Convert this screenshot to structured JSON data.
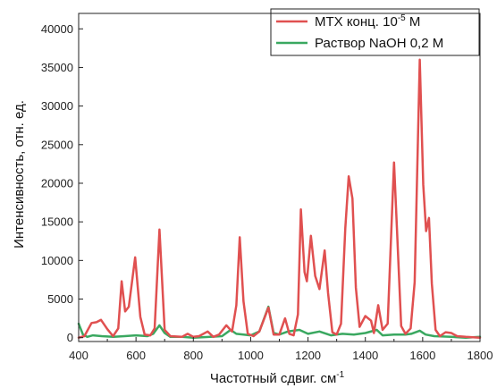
{
  "chart_data": {
    "type": "line",
    "xlabel": "Частотный сдвиг. см",
    "xlabel_sup": "-1",
    "ylabel": "Интенсивность, отн. ед.",
    "xlim": [
      400,
      1800
    ],
    "ylim": [
      -500,
      42000
    ],
    "xticks": [
      400,
      600,
      800,
      1000,
      1200,
      1400,
      1600,
      1800
    ],
    "yticks": [
      0,
      5000,
      10000,
      15000,
      20000,
      25000,
      30000,
      35000,
      40000
    ],
    "grid": false,
    "legend_position": "top-right",
    "series": [
      {
        "name": "MTX конц. 10",
        "name_sup": "-5",
        "name_suffix": " M",
        "color": "#e05050",
        "points": [
          [
            400,
            0
          ],
          [
            420,
            200
          ],
          [
            445,
            1900
          ],
          [
            462,
            2000
          ],
          [
            478,
            2300
          ],
          [
            500,
            1100
          ],
          [
            520,
            200
          ],
          [
            538,
            1200
          ],
          [
            550,
            7300
          ],
          [
            562,
            3400
          ],
          [
            575,
            4000
          ],
          [
            597,
            10400
          ],
          [
            615,
            2700
          ],
          [
            630,
            400
          ],
          [
            650,
            300
          ],
          [
            665,
            1200
          ],
          [
            682,
            14000
          ],
          [
            700,
            1000
          ],
          [
            720,
            200
          ],
          [
            760,
            100
          ],
          [
            780,
            500
          ],
          [
            800,
            100
          ],
          [
            820,
            200
          ],
          [
            850,
            800
          ],
          [
            870,
            100
          ],
          [
            890,
            400
          ],
          [
            915,
            1600
          ],
          [
            935,
            800
          ],
          [
            950,
            4200
          ],
          [
            962,
            13000
          ],
          [
            975,
            4700
          ],
          [
            990,
            500
          ],
          [
            1010,
            200
          ],
          [
            1030,
            800
          ],
          [
            1062,
            3900
          ],
          [
            1080,
            400
          ],
          [
            1100,
            400
          ],
          [
            1120,
            2500
          ],
          [
            1135,
            500
          ],
          [
            1150,
            300
          ],
          [
            1165,
            3000
          ],
          [
            1175,
            16600
          ],
          [
            1188,
            8500
          ],
          [
            1196,
            7300
          ],
          [
            1210,
            13200
          ],
          [
            1225,
            8000
          ],
          [
            1240,
            6300
          ],
          [
            1258,
            11300
          ],
          [
            1270,
            5800
          ],
          [
            1285,
            700
          ],
          [
            1300,
            400
          ],
          [
            1315,
            1800
          ],
          [
            1330,
            14200
          ],
          [
            1342,
            20900
          ],
          [
            1355,
            18000
          ],
          [
            1367,
            6500
          ],
          [
            1380,
            1400
          ],
          [
            1400,
            2800
          ],
          [
            1420,
            2200
          ],
          [
            1430,
            600
          ],
          [
            1445,
            4200
          ],
          [
            1460,
            1000
          ],
          [
            1478,
            1800
          ],
          [
            1493,
            16000
          ],
          [
            1500,
            22700
          ],
          [
            1510,
            14300
          ],
          [
            1525,
            1500
          ],
          [
            1540,
            500
          ],
          [
            1558,
            1200
          ],
          [
            1572,
            7200
          ],
          [
            1590,
            36000
          ],
          [
            1602,
            19800
          ],
          [
            1612,
            13800
          ],
          [
            1622,
            15500
          ],
          [
            1632,
            7000
          ],
          [
            1645,
            1000
          ],
          [
            1660,
            200
          ],
          [
            1680,
            700
          ],
          [
            1700,
            600
          ],
          [
            1720,
            200
          ],
          [
            1750,
            100
          ],
          [
            1800,
            0
          ]
        ]
      },
      {
        "name": "Раствор NaOH 0,2 M",
        "color": "#3aa860",
        "points": [
          [
            400,
            1800
          ],
          [
            415,
            400
          ],
          [
            430,
            100
          ],
          [
            450,
            300
          ],
          [
            480,
            200
          ],
          [
            520,
            100
          ],
          [
            560,
            200
          ],
          [
            600,
            300
          ],
          [
            640,
            200
          ],
          [
            660,
            500
          ],
          [
            682,
            1600
          ],
          [
            700,
            600
          ],
          [
            720,
            100
          ],
          [
            760,
            100
          ],
          [
            800,
            0
          ],
          [
            860,
            100
          ],
          [
            900,
            200
          ],
          [
            930,
            1000
          ],
          [
            950,
            500
          ],
          [
            1000,
            300
          ],
          [
            1030,
            800
          ],
          [
            1062,
            4000
          ],
          [
            1080,
            600
          ],
          [
            1100,
            400
          ],
          [
            1130,
            800
          ],
          [
            1170,
            1000
          ],
          [
            1200,
            500
          ],
          [
            1240,
            800
          ],
          [
            1280,
            300
          ],
          [
            1320,
            500
          ],
          [
            1360,
            400
          ],
          [
            1400,
            600
          ],
          [
            1440,
            1000
          ],
          [
            1460,
            300
          ],
          [
            1500,
            400
          ],
          [
            1540,
            400
          ],
          [
            1560,
            500
          ],
          [
            1590,
            900
          ],
          [
            1610,
            400
          ],
          [
            1640,
            200
          ],
          [
            1700,
            100
          ],
          [
            1750,
            0
          ],
          [
            1800,
            100
          ]
        ]
      }
    ]
  }
}
